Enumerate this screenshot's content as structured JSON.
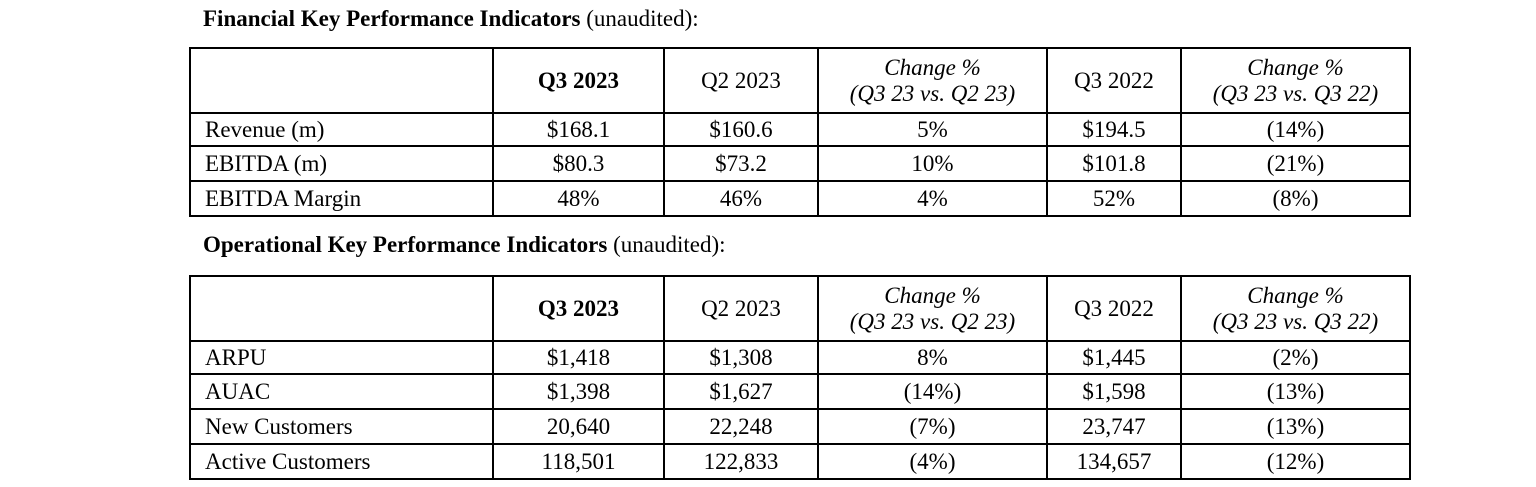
{
  "financial": {
    "title_bold": "Financial Key Performance Indicators",
    "title_suffix": " (unaudited):",
    "headers": {
      "q3_2023": "Q3 2023",
      "q2_2023": "Q2 2023",
      "change_qoq_line1": "Change %",
      "change_qoq_line2": "(Q3 23 vs. Q2 23)",
      "q3_2022": "Q3 2022",
      "change_yoy_line1": "Change %",
      "change_yoy_line2": "(Q3 23 vs. Q3 22)"
    },
    "rows": [
      {
        "label": "Revenue (m)",
        "q3_2023": "$168.1",
        "q2_2023": "$160.6",
        "change_qoq": "5%",
        "q3_2022": "$194.5",
        "change_yoy": "(14%)"
      },
      {
        "label": "EBITDA (m)",
        "q3_2023": "$80.3",
        "q2_2023": "$73.2",
        "change_qoq": "10%",
        "q3_2022": "$101.8",
        "change_yoy": "(21%)"
      },
      {
        "label": "EBITDA Margin",
        "q3_2023": "48%",
        "q2_2023": "46%",
        "change_qoq": "4%",
        "q3_2022": "52%",
        "change_yoy": "(8%)"
      }
    ]
  },
  "operational": {
    "title_bold": "Operational Key Performance Indicators",
    "title_suffix": " (unaudited):",
    "headers": {
      "q3_2023": "Q3 2023",
      "q2_2023": "Q2 2023",
      "change_qoq_line1": "Change %",
      "change_qoq_line2": "(Q3 23 vs. Q2 23)",
      "q3_2022": "Q3 2022",
      "change_yoy_line1": "Change %",
      "change_yoy_line2": "(Q3 23 vs. Q3 22)"
    },
    "rows": [
      {
        "label": "ARPU",
        "q3_2023": "$1,418",
        "q2_2023": "$1,308",
        "change_qoq": "8%",
        "q3_2022": "$1,445",
        "change_yoy": "(2%)"
      },
      {
        "label": "AUAC",
        "q3_2023": "$1,398",
        "q2_2023": "$1,627",
        "change_qoq": "(14%)",
        "q3_2022": "$1,598",
        "change_yoy": "(13%)"
      },
      {
        "label": "New Customers",
        "q3_2023": "20,640",
        "q2_2023": "22,248",
        "change_qoq": "(7%)",
        "q3_2022": "23,747",
        "change_yoy": "(13%)"
      },
      {
        "label": "Active Customers",
        "q3_2023": "118,501",
        "q2_2023": "122,833",
        "change_qoq": "(4%)",
        "q3_2022": "134,657",
        "change_yoy": "(12%)"
      }
    ]
  }
}
